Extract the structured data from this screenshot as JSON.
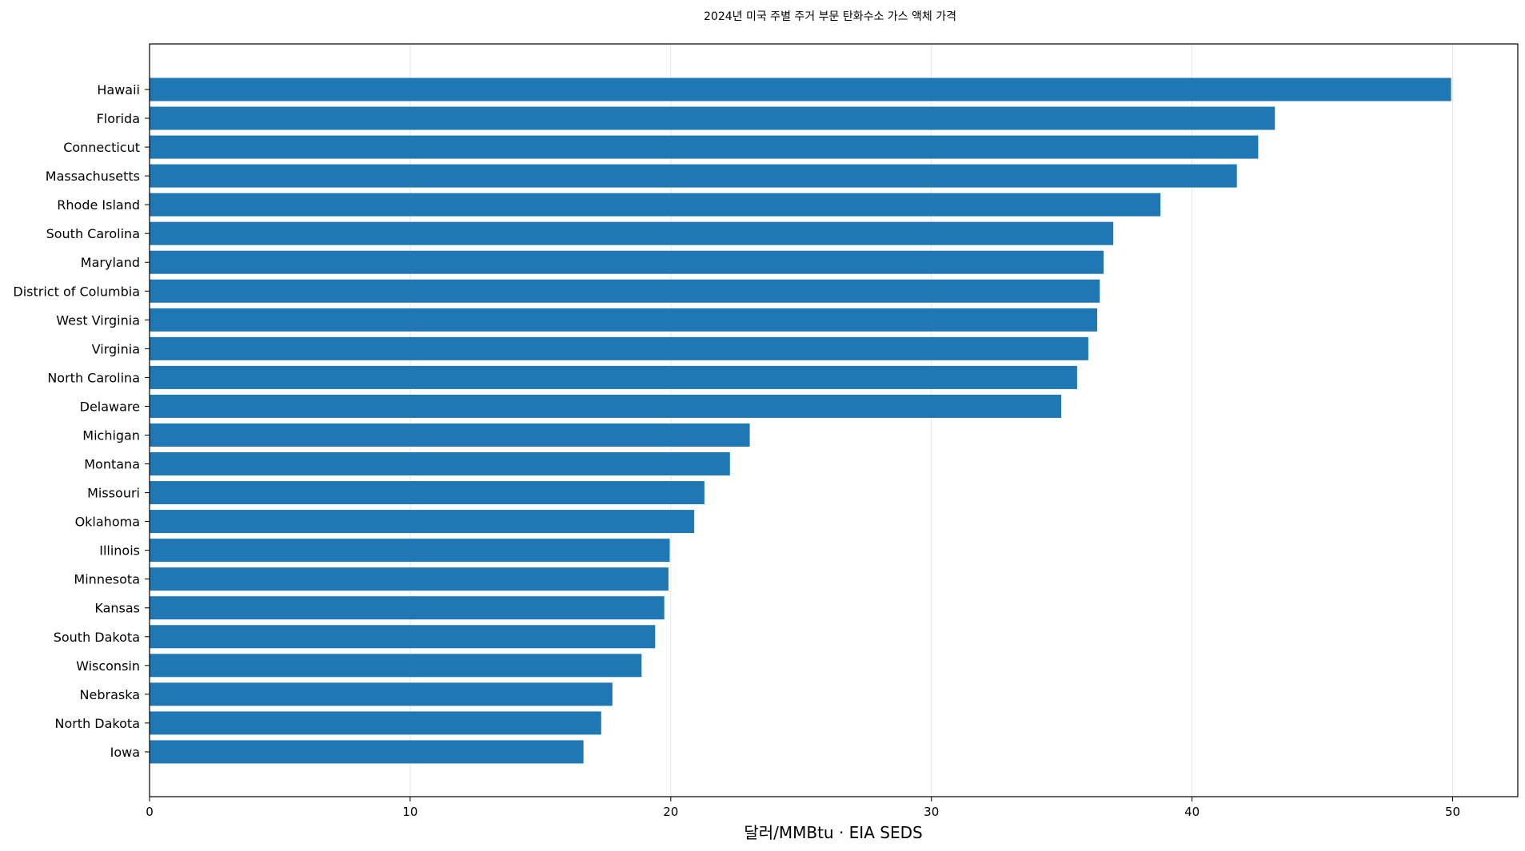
{
  "chart_data": {
    "type": "bar",
    "orientation": "horizontal",
    "title": "2024년 미국 주별 주거 부문 탄화수소 가스 액체 가격",
    "xlabel": "달러/MMBtu · EIA SEDS",
    "ylabel": "",
    "xlim": [
      0,
      52.5
    ],
    "xticks": [
      0,
      10,
      20,
      30,
      40,
      50
    ],
    "grid": "vertical",
    "bar_color": "#1f77b4",
    "categories": [
      "Hawaii",
      "Florida",
      "Connecticut",
      "Massachusetts",
      "Rhode Island",
      "South Carolina",
      "Maryland",
      "District of Columbia",
      "West Virginia",
      "Virginia",
      "North Carolina",
      "Delaware",
      "Michigan",
      "Montana",
      "Missouri",
      "Oklahoma",
      "Illinois",
      "Minnesota",
      "Kansas",
      "South Dakota",
      "Wisconsin",
      "Nebraska",
      "North Dakota",
      "Iowa"
    ],
    "values": [
      49.94,
      43.18,
      42.54,
      41.72,
      38.79,
      36.98,
      36.61,
      36.46,
      36.36,
      36.02,
      35.59,
      34.98,
      23.03,
      22.27,
      21.29,
      20.9,
      19.96,
      19.91,
      19.75,
      19.4,
      18.88,
      17.76,
      17.33,
      16.65
    ]
  }
}
